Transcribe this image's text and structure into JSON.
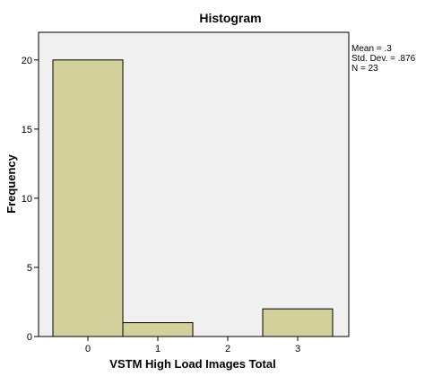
{
  "chart_data": {
    "type": "bar",
    "title": "Histogram",
    "xlabel": "VSTM High Load Images Total",
    "ylabel": "Frequency",
    "categories": [
      "0",
      "1",
      "2",
      "3"
    ],
    "values": [
      20,
      1,
      0,
      2
    ],
    "ylim": [
      0,
      22
    ],
    "yticks": [
      "0",
      "5",
      "10",
      "15",
      "20"
    ],
    "grid": false,
    "legend": "none",
    "stats": [
      "Mean = .3",
      "Std. Dev. = .876",
      "N = 23"
    ],
    "bar_color": "#d4d09c",
    "plot_bg": "#f0f0f0"
  }
}
